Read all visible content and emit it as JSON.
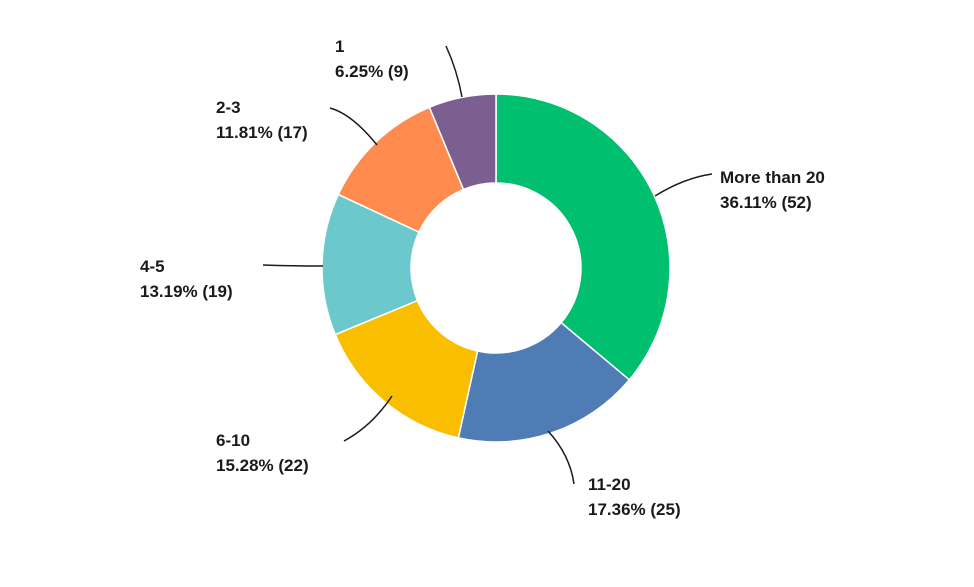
{
  "chart_data": {
    "type": "pie",
    "donut": true,
    "slices": [
      {
        "label": "More than 20",
        "percent_label": "36.11% (52)",
        "value": 52,
        "percent": 36.11,
        "color": "#00bf6f"
      },
      {
        "label": "11-20",
        "percent_label": "17.36% (25)",
        "value": 25,
        "percent": 17.36,
        "color": "#507cb6"
      },
      {
        "label": "6-10",
        "percent_label": "15.28% (22)",
        "value": 22,
        "percent": 15.28,
        "color": "#f9be00"
      },
      {
        "label": "4-5",
        "percent_label": "13.19% (19)",
        "value": 19,
        "percent": 13.19,
        "color": "#6bc8cd"
      },
      {
        "label": "2-3",
        "percent_label": "11.81% (17)",
        "value": 17,
        "percent": 11.81,
        "color": "#ff8b4f"
      },
      {
        "label": "1",
        "percent_label": "6.25% (9)",
        "value": 9,
        "percent": 6.25,
        "color": "#7d5e90"
      }
    ]
  }
}
